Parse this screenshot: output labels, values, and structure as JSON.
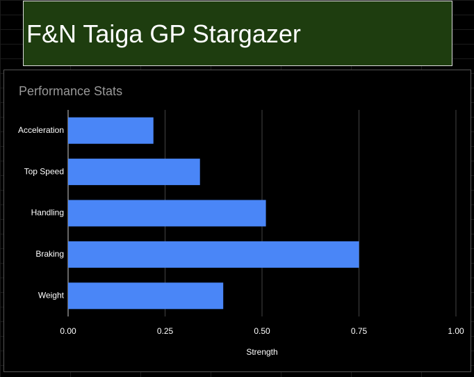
{
  "header": {
    "title": "F&N Taiga GP Stargazer"
  },
  "chart_data": {
    "type": "bar",
    "orientation": "horizontal",
    "title": "Performance Stats",
    "x_label": "Strength",
    "categories": [
      "Acceleration",
      "Top Speed",
      "Handling",
      "Braking",
      "Weight"
    ],
    "values": [
      0.22,
      0.34,
      0.51,
      0.75,
      0.4
    ],
    "color": "#4a86f7",
    "xlim": [
      0,
      1
    ],
    "xticks": [
      {
        "value": 0,
        "label": "0.00"
      },
      {
        "value": 0.25,
        "label": "0.25"
      },
      {
        "value": 0.5,
        "label": "0.50"
      },
      {
        "value": 0.75,
        "label": "0.75"
      },
      {
        "value": 1,
        "label": "1.00"
      }
    ],
    "grid": true
  }
}
